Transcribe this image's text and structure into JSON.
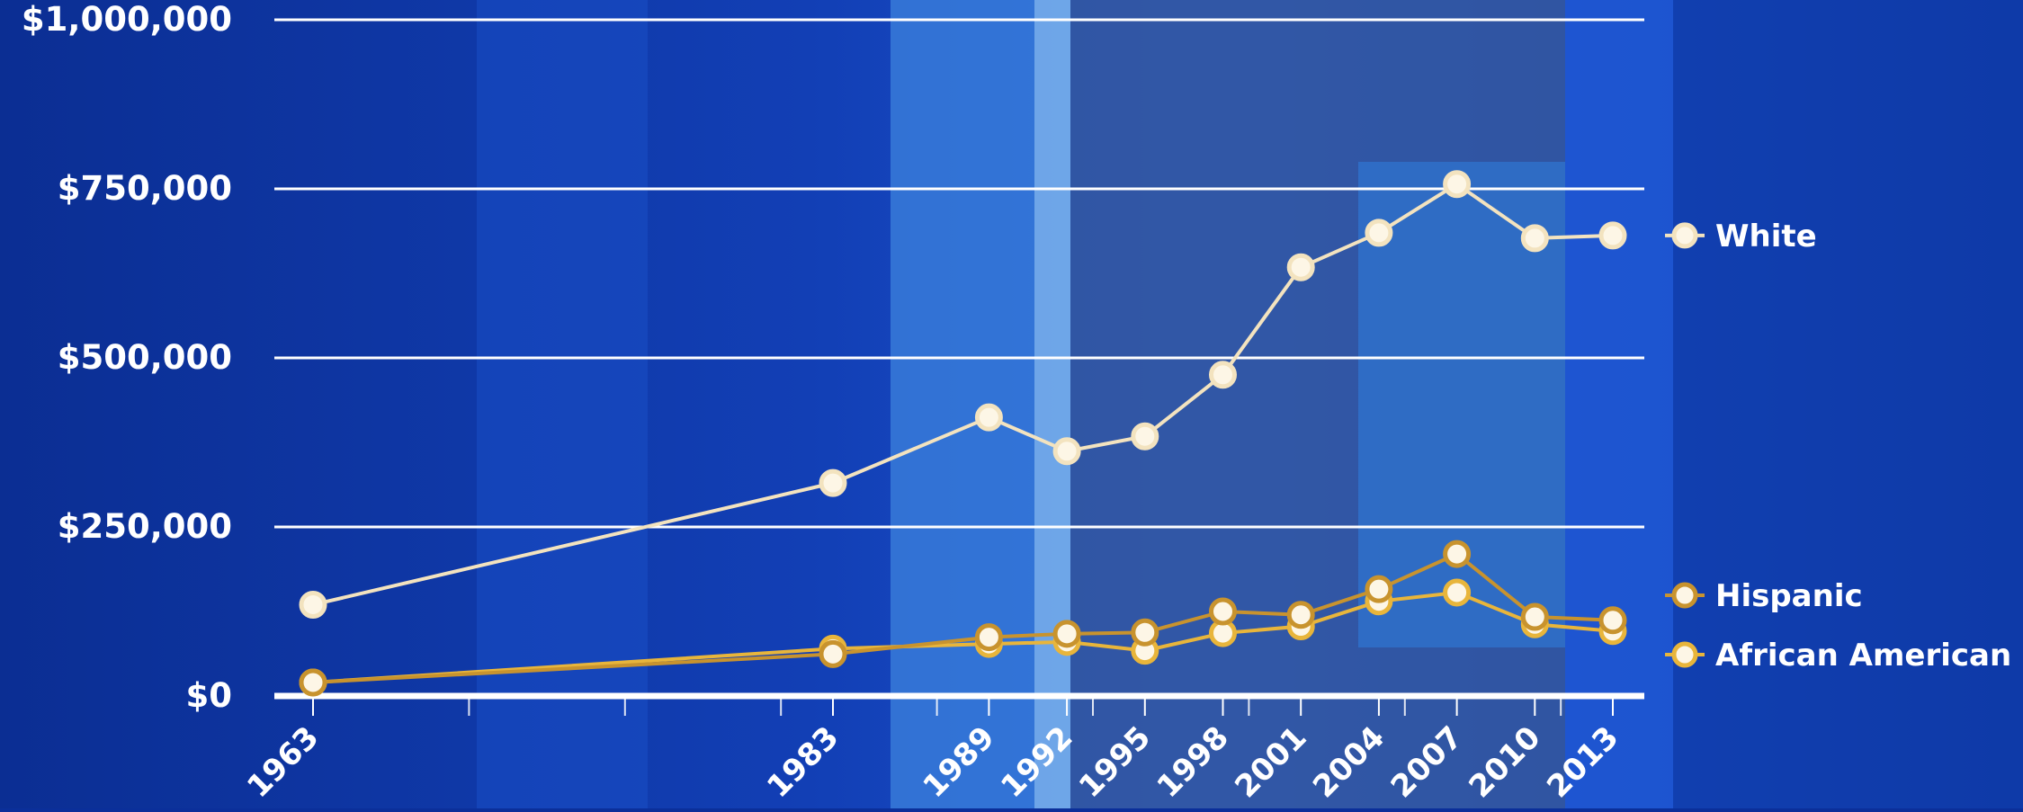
{
  "chart_data": {
    "type": "line",
    "title": "",
    "xlabel": "",
    "ylabel": "",
    "ylim": [
      0,
      1000000
    ],
    "y_ticks": [
      0,
      250000,
      500000,
      750000,
      1000000
    ],
    "y_tick_labels": [
      "$0",
      "$250,000",
      "$500,000",
      "$750,000",
      "$1,000,000"
    ],
    "x": [
      1963,
      1983,
      1989,
      1992,
      1995,
      1998,
      2001,
      2004,
      2007,
      2010,
      2013
    ],
    "x_tick_labels": [
      "1963",
      "1983",
      "1989",
      "1992",
      "1995",
      "1998",
      "2001",
      "2004",
      "2007",
      "2010",
      "2013"
    ],
    "grid": "horizontal",
    "legend": "right, beside series ends",
    "series": [
      {
        "name": "White",
        "color": "#f3e3bf",
        "values": [
          135000,
          315000,
          412000,
          362000,
          384000,
          475000,
          634000,
          685000,
          757000,
          677000,
          681000
        ]
      },
      {
        "name": "Hispanic",
        "color": "#c8932e",
        "values": [
          20000,
          62000,
          87000,
          92000,
          94000,
          125000,
          120000,
          158000,
          210000,
          117000,
          112000
        ]
      },
      {
        "name": "African American",
        "color": "#e8b53b",
        "values": [
          20000,
          70000,
          77000,
          80000,
          67000,
          93000,
          103000,
          140000,
          153000,
          106000,
          96000
        ]
      }
    ]
  },
  "colors": {
    "grid_line": "#ffffff",
    "text": "#ffffff",
    "background": "#0b2f9a"
  }
}
